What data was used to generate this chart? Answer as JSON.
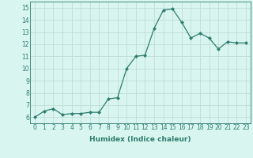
{
  "x": [
    0,
    1,
    2,
    3,
    4,
    5,
    6,
    7,
    8,
    9,
    10,
    11,
    12,
    13,
    14,
    15,
    16,
    17,
    18,
    19,
    20,
    21,
    22,
    23
  ],
  "y": [
    6.0,
    6.5,
    6.7,
    6.2,
    6.3,
    6.3,
    6.4,
    6.4,
    7.5,
    7.6,
    10.0,
    11.0,
    11.1,
    13.3,
    14.8,
    14.9,
    13.8,
    12.5,
    12.9,
    12.5,
    11.6,
    12.2,
    12.1,
    12.1
  ],
  "xlabel": "Humidex (Indice chaleur)",
  "ylim": [
    5.5,
    15.5
  ],
  "xlim": [
    -0.5,
    23.5
  ],
  "xticks": [
    0,
    1,
    2,
    3,
    4,
    5,
    6,
    7,
    8,
    9,
    10,
    11,
    12,
    13,
    14,
    15,
    16,
    17,
    18,
    19,
    20,
    21,
    22,
    23
  ],
  "yticks": [
    6,
    7,
    8,
    9,
    10,
    11,
    12,
    13,
    14,
    15
  ],
  "line_color": "#2e7d6e",
  "marker": "D",
  "marker_size": 2.0,
  "bg_color": "#d8f5f0",
  "grid_color": "#c0ddd8",
  "tick_fontsize": 5.5,
  "xlabel_fontsize": 6.5,
  "line_width": 0.9
}
